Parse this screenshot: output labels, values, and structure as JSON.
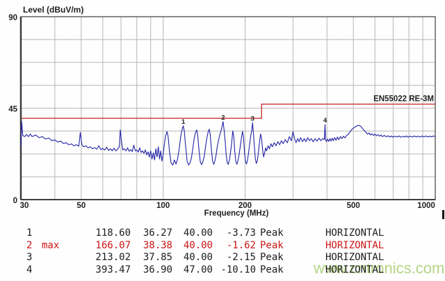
{
  "chart_data": {
    "type": "line",
    "title": "Level (dBuV/m)",
    "xlabel": "Frequency (MHz)",
    "x_scale": "log",
    "xlim": [
      30,
      1000
    ],
    "ylim": [
      0,
      90
    ],
    "x_ticks": [
      30,
      50,
      100,
      200,
      500,
      1000
    ],
    "y_ticks": [
      90,
      45,
      0
    ],
    "grid": {
      "x": [
        40,
        50,
        60,
        70,
        80,
        90,
        100,
        200,
        300,
        400,
        500,
        600,
        700,
        800,
        900
      ],
      "y": [
        11.25,
        22.5,
        33.75,
        45,
        56.25,
        67.5,
        78.75
      ],
      "color": "#b5b5b5"
    },
    "border_color": "#3c3c3c",
    "limit_line": {
      "label": "EN55022 RE-3M",
      "color": "#cc3434",
      "points": [
        [
          30,
          40
        ],
        [
          230,
          40
        ],
        [
          230,
          47
        ],
        [
          1000,
          47
        ]
      ]
    },
    "marker_color": "#2a2a9e",
    "markers": [
      {
        "n": "1",
        "f": 118.6,
        "dB": 36.27
      },
      {
        "n": "2",
        "f": 166.07,
        "dB": 38.38
      },
      {
        "n": "3",
        "f": 213.02,
        "dB": 37.85
      },
      {
        "n": "4",
        "f": 393.47,
        "dB": 36.9
      }
    ],
    "trace": {
      "name": "measured-emissions-peak-trace",
      "color": "#2222a6",
      "points": [
        [
          30,
          26
        ],
        [
          30.2,
          38.5
        ],
        [
          30.5,
          31.5
        ],
        [
          31,
          31
        ],
        [
          31.5,
          32
        ],
        [
          32,
          31
        ],
        [
          32.5,
          32.3
        ],
        [
          33,
          31
        ],
        [
          34,
          31.8
        ],
        [
          35,
          30.5
        ],
        [
          36,
          31
        ],
        [
          37,
          29.8
        ],
        [
          38,
          30.3
        ],
        [
          39,
          29
        ],
        [
          40,
          29.4
        ],
        [
          41,
          28.3
        ],
        [
          42,
          28.8
        ],
        [
          43,
          27.6
        ],
        [
          44,
          28
        ],
        [
          45,
          27
        ],
        [
          46,
          27.4
        ],
        [
          47,
          26.5
        ],
        [
          48,
          27
        ],
        [
          49,
          26.3
        ],
        [
          49.6,
          33
        ],
        [
          50.3,
          27
        ],
        [
          51,
          26
        ],
        [
          52,
          26.5
        ],
        [
          53,
          25.5
        ],
        [
          54,
          26
        ],
        [
          55,
          25
        ],
        [
          56,
          25.6
        ],
        [
          57,
          24.8
        ],
        [
          58,
          26.5
        ],
        [
          59,
          24.6
        ],
        [
          60,
          25.2
        ],
        [
          61,
          24.4
        ],
        [
          62,
          25.8
        ],
        [
          63,
          24.2
        ],
        [
          64,
          25
        ],
        [
          65,
          24
        ],
        [
          66,
          25.3
        ],
        [
          67,
          24
        ],
        [
          68,
          24.8
        ],
        [
          69,
          26
        ],
        [
          69.6,
          34.3
        ],
        [
          70.4,
          28
        ],
        [
          71,
          24.5
        ],
        [
          72,
          25
        ],
        [
          73,
          24
        ],
        [
          74,
          25.5
        ],
        [
          75,
          23.8
        ],
        [
          76,
          24.6
        ],
        [
          77,
          23.6
        ],
        [
          78,
          26.8
        ],
        [
          79,
          24
        ],
        [
          80,
          24.5
        ],
        [
          81,
          23.4
        ],
        [
          82,
          25.5
        ],
        [
          83,
          23.2
        ],
        [
          84,
          24
        ],
        [
          85,
          22.8
        ],
        [
          86,
          24.5
        ],
        [
          87,
          22
        ],
        [
          88,
          23.5
        ],
        [
          89,
          21
        ],
        [
          90,
          24
        ],
        [
          91,
          20
        ],
        [
          92,
          23
        ],
        [
          93,
          19.5
        ],
        [
          94,
          25
        ],
        [
          95,
          21
        ],
        [
          96,
          26
        ],
        [
          97,
          20
        ],
        [
          98,
          24
        ],
        [
          99,
          19
        ],
        [
          100,
          22
        ],
        [
          101,
          27
        ],
        [
          102,
          31
        ],
        [
          103.3,
          33.5
        ],
        [
          104.3,
          31
        ],
        [
          105.5,
          24
        ],
        [
          107,
          18
        ],
        [
          108.5,
          17
        ],
        [
          110,
          19.5
        ],
        [
          111.5,
          17.5
        ],
        [
          113,
          20
        ],
        [
          114.5,
          25
        ],
        [
          116,
          31
        ],
        [
          117.3,
          34.5
        ],
        [
          118.6,
          36.3
        ],
        [
          119.6,
          33.5
        ],
        [
          121,
          26
        ],
        [
          122.5,
          19
        ],
        [
          124,
          17
        ],
        [
          125.5,
          18
        ],
        [
          127,
          20.5
        ],
        [
          128.5,
          25
        ],
        [
          130,
          30
        ],
        [
          131.5,
          33
        ],
        [
          132.8,
          34.3
        ],
        [
          134,
          31.5
        ],
        [
          135.5,
          24
        ],
        [
          137,
          18.5
        ],
        [
          138.5,
          17.2
        ],
        [
          140,
          18.8
        ],
        [
          141.5,
          21
        ],
        [
          143,
          25.5
        ],
        [
          144.8,
          30.5
        ],
        [
          146.5,
          33.5
        ],
        [
          147.8,
          34.6
        ],
        [
          149,
          31.8
        ],
        [
          150.5,
          24.5
        ],
        [
          152,
          18.8
        ],
        [
          153.5,
          17.4
        ],
        [
          155,
          19
        ],
        [
          156.5,
          22
        ],
        [
          158,
          26
        ],
        [
          160,
          29.5
        ],
        [
          162,
          32.5
        ],
        [
          164,
          34.8
        ],
        [
          166.07,
          38.4
        ],
        [
          167.6,
          34
        ],
        [
          169,
          29
        ],
        [
          170.5,
          22
        ],
        [
          172,
          18.2
        ],
        [
          173.5,
          17.3
        ],
        [
          175,
          19.4
        ],
        [
          176.8,
          23
        ],
        [
          178.6,
          28
        ],
        [
          180.2,
          33.8
        ],
        [
          181.8,
          31
        ],
        [
          183.3,
          24
        ],
        [
          185,
          18.6
        ],
        [
          186.6,
          17.4
        ],
        [
          188.2,
          19
        ],
        [
          190,
          21.8
        ],
        [
          192,
          26
        ],
        [
          194,
          30.5
        ],
        [
          195.8,
          33.6
        ],
        [
          197.5,
          30.5
        ],
        [
          199,
          23.5
        ],
        [
          200.8,
          18.4
        ],
        [
          202.5,
          17.6
        ],
        [
          204.2,
          19.6
        ],
        [
          206,
          23
        ],
        [
          208,
          27.5
        ],
        [
          210,
          31.5
        ],
        [
          211.8,
          34.2
        ],
        [
          213.02,
          37.9
        ],
        [
          214.6,
          33
        ],
        [
          216.2,
          27
        ],
        [
          218,
          20.5
        ],
        [
          220,
          17.8
        ],
        [
          222,
          19.2
        ],
        [
          224,
          23.5
        ],
        [
          226,
          28
        ],
        [
          228,
          32.3
        ],
        [
          230,
          30
        ],
        [
          232,
          24.5
        ],
        [
          234,
          21
        ],
        [
          236,
          23
        ],
        [
          238,
          25.5
        ],
        [
          240,
          24
        ],
        [
          243,
          26.5
        ],
        [
          246,
          25
        ],
        [
          249,
          27.5
        ],
        [
          252,
          26
        ],
        [
          256,
          28
        ],
        [
          260,
          26.5
        ],
        [
          264,
          28.5
        ],
        [
          268,
          27
        ],
        [
          272,
          29
        ],
        [
          276,
          27.5
        ],
        [
          281,
          29.5
        ],
        [
          286,
          28
        ],
        [
          291,
          31
        ],
        [
          296,
          29
        ],
        [
          300,
          33.5
        ],
        [
          304,
          30
        ],
        [
          308,
          28
        ],
        [
          312,
          30
        ],
        [
          316,
          28.5
        ],
        [
          320,
          30.5
        ],
        [
          325,
          28.5
        ],
        [
          330,
          30
        ],
        [
          335,
          28.5
        ],
        [
          340,
          30.5
        ],
        [
          345,
          29
        ],
        [
          350,
          30
        ],
        [
          356,
          28.5
        ],
        [
          362,
          30
        ],
        [
          368,
          28.8
        ],
        [
          374,
          30.2
        ],
        [
          380,
          29
        ],
        [
          386,
          30
        ],
        [
          391,
          29.5
        ],
        [
          393.47,
          36.9
        ],
        [
          395.5,
          29.5
        ],
        [
          398,
          28.5
        ],
        [
          402,
          29.8
        ],
        [
          406,
          28.6
        ],
        [
          410,
          30
        ],
        [
          414,
          28.8
        ],
        [
          418,
          30.2
        ],
        [
          422,
          29
        ],
        [
          427,
          30.5
        ],
        [
          432,
          29.2
        ],
        [
          437,
          30.8
        ],
        [
          442,
          29.5
        ],
        [
          448,
          31
        ],
        [
          454,
          30
        ],
        [
          460,
          31.2
        ],
        [
          466,
          30.4
        ],
        [
          472,
          31.5
        ],
        [
          478,
          32
        ],
        [
          484,
          33
        ],
        [
          490,
          34
        ],
        [
          496,
          34.8
        ],
        [
          502,
          35.3
        ],
        [
          508,
          35.8
        ],
        [
          516,
          36.3
        ],
        [
          524,
          36.5
        ],
        [
          532,
          36.1
        ],
        [
          540,
          35
        ],
        [
          548,
          34
        ],
        [
          556,
          33.2
        ],
        [
          564,
          32.2
        ],
        [
          571,
          32.8
        ],
        [
          578,
          31.8
        ],
        [
          585,
          32.4
        ],
        [
          592,
          31.6
        ],
        [
          600,
          32.2
        ],
        [
          608,
          31.4
        ],
        [
          616,
          32
        ],
        [
          624,
          31.2
        ],
        [
          632,
          31.8
        ],
        [
          640,
          31
        ],
        [
          650,
          31.6
        ],
        [
          660,
          30.9
        ],
        [
          670,
          31.4
        ],
        [
          680,
          30.8
        ],
        [
          690,
          31.3
        ],
        [
          700,
          30.7
        ],
        [
          712,
          31.2
        ],
        [
          724,
          30.8
        ],
        [
          736,
          31.3
        ],
        [
          748,
          30.7
        ],
        [
          760,
          31.2
        ],
        [
          772,
          30.8
        ],
        [
          784,
          31.3
        ],
        [
          796,
          30.7
        ],
        [
          810,
          31.2
        ],
        [
          824,
          30.8
        ],
        [
          838,
          31.3
        ],
        [
          852,
          30.8
        ],
        [
          866,
          31.2
        ],
        [
          880,
          30.8
        ],
        [
          895,
          31.3
        ],
        [
          910,
          30.9
        ],
        [
          925,
          31.3
        ],
        [
          940,
          30.8
        ],
        [
          955,
          31.2
        ],
        [
          970,
          30.9
        ],
        [
          985,
          31.3
        ],
        [
          1000,
          31
        ]
      ]
    },
    "axis_cursor_mark": true
  },
  "table": {
    "highlight_color": "#cc1414",
    "rows": [
      {
        "num": "1",
        "tag": "",
        "freq": "118.60",
        "level": "36.27",
        "limit": "40.00",
        "margin": "-3.73",
        "detector": "Peak",
        "polarization": "HORIZONTAL",
        "highlight": false
      },
      {
        "num": "2",
        "tag": "max",
        "freq": "166.07",
        "level": "38.38",
        "limit": "40.00",
        "margin": "-1.62",
        "detector": "Peak",
        "polarization": "HORIZONTAL",
        "highlight": true
      },
      {
        "num": "3",
        "tag": "",
        "freq": "213.02",
        "level": "37.85",
        "limit": "40.00",
        "margin": "-2.15",
        "detector": "Peak",
        "polarization": "HORIZONTAL",
        "highlight": false
      },
      {
        "num": "4",
        "tag": "",
        "freq": "393.47",
        "level": "36.90",
        "limit": "47.00",
        "margin": "-10.10",
        "detector": "Peak",
        "polarization": "HORIZONTAL",
        "highlight": false
      }
    ]
  },
  "watermark": {
    "text": "www.cntronics.com",
    "color": "#a3cb68"
  }
}
